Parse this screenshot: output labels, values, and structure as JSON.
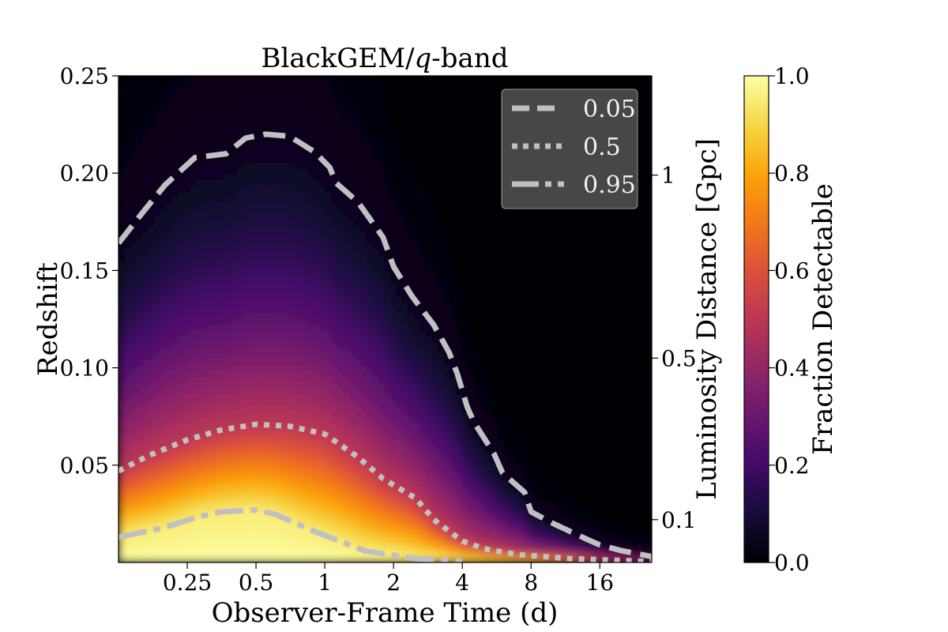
{
  "chart_data": {
    "type": "heatmap",
    "title": "BlackGEM/q-band",
    "title_parts": {
      "prefix": "BlackGEM/",
      "italic": "q",
      "suffix": "-band"
    },
    "xlabel": "Observer-Frame Time (d)",
    "ylabel": "Redshift",
    "y2label": "Luminosity Distance [Gpc]",
    "colorbar_label": "Fraction Detectable",
    "x_scale": "log2",
    "xlim": [
      0.125,
      27
    ],
    "ylim": [
      0.0,
      0.25
    ],
    "clim": [
      0.0,
      1.0
    ],
    "colormap": "inferno",
    "x_ticks": [
      {
        "value": 0.25,
        "label": "0.25"
      },
      {
        "value": 0.5,
        "label": "0.5"
      },
      {
        "value": 1,
        "label": "1"
      },
      {
        "value": 2,
        "label": "2"
      },
      {
        "value": 4,
        "label": "4"
      },
      {
        "value": 8,
        "label": "8"
      },
      {
        "value": 16,
        "label": "16"
      }
    ],
    "y_ticks": [
      {
        "value": 0.05,
        "label": "0.05"
      },
      {
        "value": 0.1,
        "label": "0.10"
      },
      {
        "value": 0.15,
        "label": "0.15"
      },
      {
        "value": 0.2,
        "label": "0.20"
      },
      {
        "value": 0.25,
        "label": "0.25"
      }
    ],
    "y2_ticks": [
      {
        "value": 0.022,
        "label": "0.1"
      },
      {
        "value": 0.105,
        "label": "0.5"
      },
      {
        "value": 0.199,
        "label": "1"
      }
    ],
    "colorbar_ticks": [
      {
        "value": 0.0,
        "label": "0.0"
      },
      {
        "value": 0.2,
        "label": "0.2"
      },
      {
        "value": 0.4,
        "label": "0.4"
      },
      {
        "value": 0.6,
        "label": "0.6"
      },
      {
        "value": 0.8,
        "label": "0.8"
      },
      {
        "value": 1.0,
        "label": "1.0"
      }
    ],
    "legend_position": "top-right",
    "contours": [
      {
        "name": "0.05",
        "style": "dashed",
        "color": "#c0c0c0",
        "points": [
          [
            0.125,
            0.164
          ],
          [
            0.16,
            0.18
          ],
          [
            0.2,
            0.194
          ],
          [
            0.27,
            0.208
          ],
          [
            0.37,
            0.21
          ],
          [
            0.45,
            0.218
          ],
          [
            0.55,
            0.22
          ],
          [
            0.7,
            0.219
          ],
          [
            0.9,
            0.211
          ],
          [
            1.05,
            0.203
          ],
          [
            1.12,
            0.195
          ],
          [
            1.4,
            0.185
          ],
          [
            1.8,
            0.167
          ],
          [
            2.0,
            0.152
          ],
          [
            2.4,
            0.137
          ],
          [
            3.0,
            0.122
          ],
          [
            3.5,
            0.108
          ],
          [
            3.8,
            0.097
          ],
          [
            4.2,
            0.08
          ],
          [
            4.5,
            0.072
          ],
          [
            5.5,
            0.056
          ],
          [
            6.0,
            0.046
          ],
          [
            7.5,
            0.036
          ],
          [
            8.0,
            0.026
          ],
          [
            10,
            0.02
          ],
          [
            14,
            0.012
          ],
          [
            16,
            0.009
          ],
          [
            20,
            0.006
          ],
          [
            27,
            0.003
          ]
        ]
      },
      {
        "name": "0.5",
        "style": "dotted",
        "color": "#c0c0c0",
        "points": [
          [
            0.125,
            0.047
          ],
          [
            0.17,
            0.055
          ],
          [
            0.25,
            0.063
          ],
          [
            0.35,
            0.068
          ],
          [
            0.5,
            0.071
          ],
          [
            0.7,
            0.07
          ],
          [
            1.0,
            0.066
          ],
          [
            1.4,
            0.054
          ],
          [
            1.8,
            0.043
          ],
          [
            2.5,
            0.033
          ],
          [
            3.0,
            0.022
          ],
          [
            4.0,
            0.011
          ],
          [
            5.0,
            0.007
          ],
          [
            7.0,
            0.004
          ],
          [
            12,
            0.002
          ],
          [
            20,
            0.001
          ],
          [
            27,
            0.0005
          ]
        ]
      },
      {
        "name": "0.95",
        "style": "dash-dot",
        "color": "#c0c0c0",
        "points": [
          [
            0.125,
            0.013
          ],
          [
            0.2,
            0.018
          ],
          [
            0.27,
            0.023
          ],
          [
            0.35,
            0.026
          ],
          [
            0.5,
            0.027
          ],
          [
            0.6,
            0.025
          ],
          [
            0.9,
            0.016
          ],
          [
            1.5,
            0.006
          ],
          [
            2.5,
            0.002
          ],
          [
            4.0,
            0.0005
          ]
        ]
      }
    ],
    "legend_entries": [
      "0.05",
      "0.5",
      "0.95"
    ]
  },
  "colors": {
    "contour": "#c0c0c0",
    "legend_bg": "#4c4c4c",
    "legend_text": "#f2f2f2"
  }
}
